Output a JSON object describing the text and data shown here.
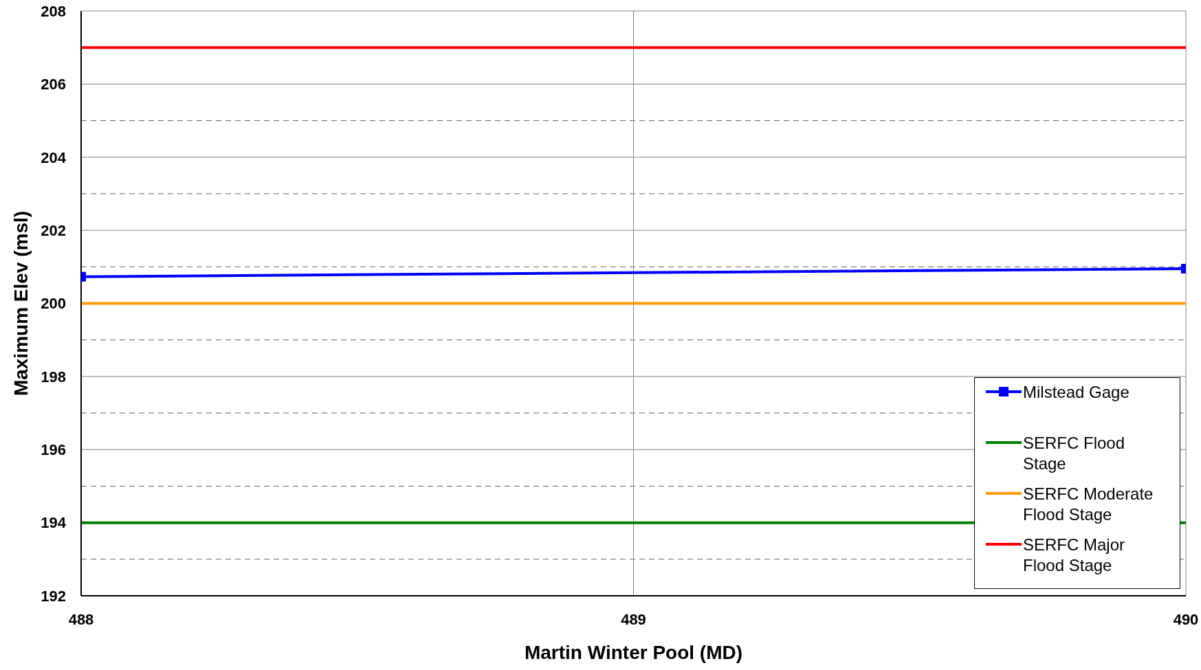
{
  "chart_data": {
    "type": "line",
    "xlabel": "Martin Winter Pool (MD)",
    "ylabel": "Maximum Elev (msl)",
    "x": [
      488,
      490
    ],
    "xlim": [
      488,
      490
    ],
    "xticks": [
      488,
      489,
      490
    ],
    "ylim": [
      192,
      208
    ],
    "yticks": [
      192,
      {
        "value": 193,
        "label": null
      },
      194,
      {
        "value": 195,
        "label": null
      },
      196,
      {
        "value": 197,
        "label": null
      },
      198,
      {
        "value": 199,
        "label": null
      },
      200,
      {
        "value": 201,
        "label": null
      },
      202,
      {
        "value": 203,
        "label": null
      },
      204,
      {
        "value": 205,
        "label": null
      },
      206,
      {
        "value": 207,
        "label": null
      },
      208
    ],
    "grid": true,
    "legend": "bottom right",
    "line_style": "solid",
    "series": [
      {
        "name": "Milstead Gage",
        "color": "#0000ff",
        "values": [
          200.73,
          200.95
        ],
        "marker": "square"
      },
      {
        "name": "SERFC Flood Stage",
        "color": "#008000",
        "values": [
          194,
          194
        ],
        "marker": "none"
      },
      {
        "name": "SERFC Moderate Flood Stage",
        "color": "#ff9900",
        "values": [
          200,
          200
        ],
        "marker": "none"
      },
      {
        "name": "SERFC Major Flood Stage",
        "color": "#ff0000",
        "values": [
          207,
          207
        ],
        "marker": "none"
      }
    ]
  }
}
